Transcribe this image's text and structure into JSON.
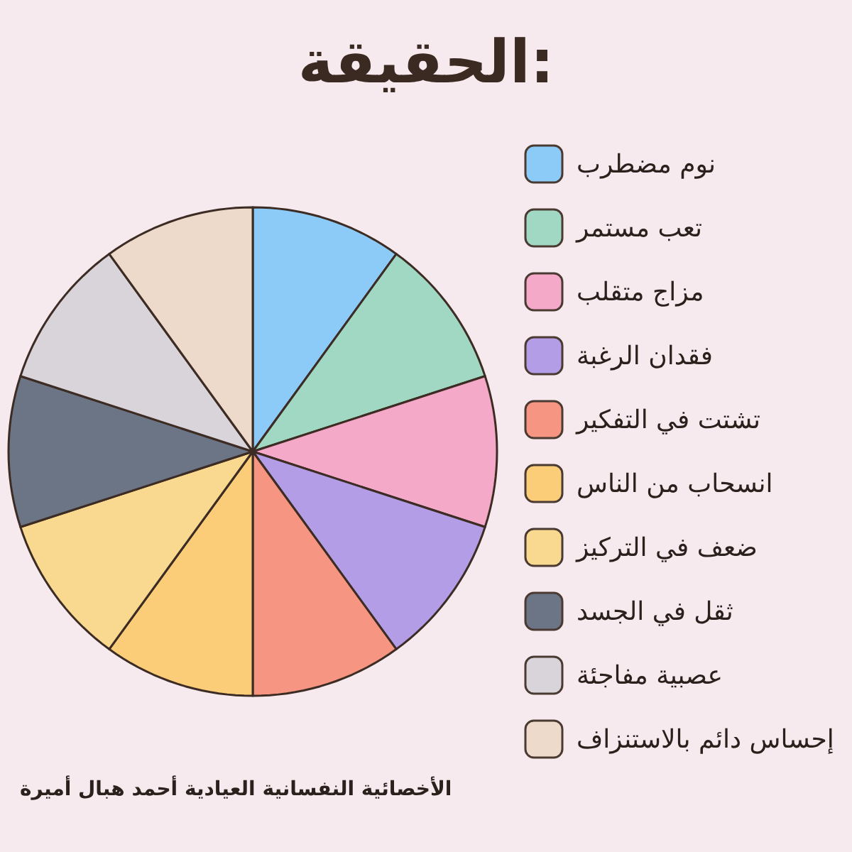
{
  "chart_data": {
    "type": "pie",
    "title": "الحقيقة:",
    "categories": [
      "نوم مضطرب",
      "تعب مستمر",
      "مزاج متقلب",
      "فقدان الرغبة",
      "تشتت في التفكير",
      "انسحاب من الناس",
      "ضعف في التركيز",
      "ثقل في الجسد",
      "عصبية مفاجئة",
      "إحساس دائم بالاستنزاف"
    ],
    "values": [
      10,
      10,
      10,
      10,
      10,
      10,
      10,
      10,
      10,
      10
    ],
    "colors": [
      "#8ccbf7",
      "#a0d8c4",
      "#f5a9c9",
      "#b39de6",
      "#f59582",
      "#fbcd78",
      "#f9d88f",
      "#6b7585",
      "#d8d4da",
      "#eddacb"
    ],
    "legend": "right",
    "annotations": [
      "الأخصائية النفسانية العيادية أحمد هبال أميرة"
    ]
  }
}
